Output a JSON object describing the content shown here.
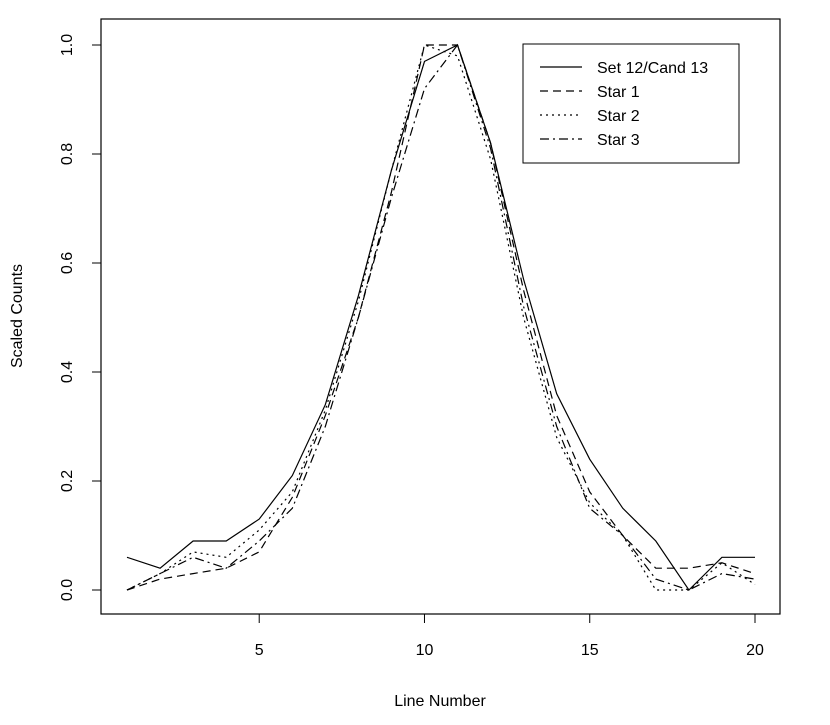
{
  "chart_data": {
    "type": "line",
    "title": "",
    "xlabel": "Line Number",
    "ylabel": "Scaled Counts",
    "xlim": [
      1,
      20
    ],
    "ylim": [
      0,
      1
    ],
    "x_ticks": [
      5,
      10,
      15,
      20
    ],
    "y_ticks": [
      0.0,
      0.2,
      0.4,
      0.6,
      0.8,
      1.0
    ],
    "y_tick_labels": [
      "0.0",
      "0.2",
      "0.4",
      "0.6",
      "0.8",
      "1.0"
    ],
    "grid": false,
    "legend_position": "top-right",
    "x": [
      1,
      2,
      3,
      4,
      5,
      6,
      7,
      8,
      9,
      10,
      11,
      12,
      13,
      14,
      15,
      16,
      17,
      18,
      19,
      20
    ],
    "series": [
      {
        "name": "Set 12/Cand 13",
        "line_style": "solid",
        "values": [
          0.06,
          0.04,
          0.09,
          0.09,
          0.13,
          0.21,
          0.34,
          0.54,
          0.77,
          0.97,
          1.0,
          0.82,
          0.57,
          0.36,
          0.24,
          0.15,
          0.09,
          0.0,
          0.06,
          0.06
        ]
      },
      {
        "name": "Star 1",
        "line_style": "dashed",
        "values": [
          0.0,
          0.02,
          0.03,
          0.04,
          0.07,
          0.17,
          0.32,
          0.5,
          0.73,
          1.0,
          1.0,
          0.82,
          0.55,
          0.32,
          0.18,
          0.1,
          0.04,
          0.04,
          0.05,
          0.03
        ]
      },
      {
        "name": "Star 2",
        "line_style": "dotted",
        "values": [
          0.0,
          0.03,
          0.07,
          0.06,
          0.11,
          0.18,
          0.33,
          0.53,
          0.77,
          1.0,
          0.98,
          0.79,
          0.5,
          0.28,
          0.16,
          0.1,
          0.0,
          0.0,
          0.05,
          0.01
        ]
      },
      {
        "name": "Star 3",
        "line_style": "dashdot",
        "values": [
          0.0,
          0.03,
          0.06,
          0.04,
          0.09,
          0.15,
          0.3,
          0.5,
          0.72,
          0.92,
          1.0,
          0.81,
          0.52,
          0.3,
          0.15,
          0.1,
          0.02,
          0.0,
          0.03,
          0.02
        ]
      }
    ]
  }
}
